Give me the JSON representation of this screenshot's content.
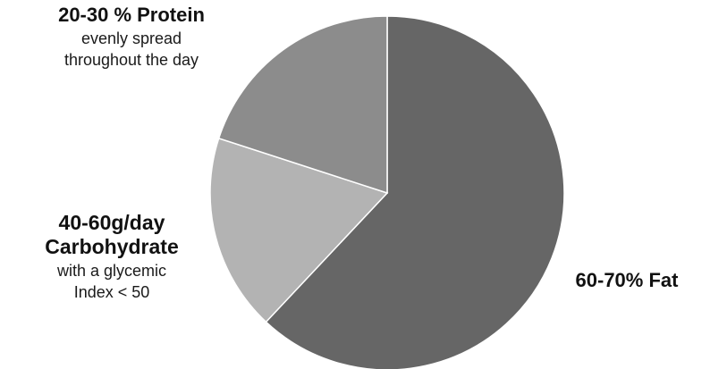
{
  "chart_data": {
    "type": "pie",
    "start_angle_deg": 0,
    "direction": "clockwise",
    "slices": [
      {
        "key": "fat",
        "value": 62,
        "color": "#666666",
        "label_main": [
          "60-70% Fat"
        ],
        "label_sub": []
      },
      {
        "key": "carbohydrate",
        "value": 18,
        "color": "#b3b3b3",
        "label_main": [
          "40-60g/day",
          "Carbohydrate"
        ],
        "label_sub": [
          "with a glycemic",
          "Index < 50"
        ]
      },
      {
        "key": "protein",
        "value": 20,
        "color": "#8c8c8c",
        "label_main": [
          "20-30 % Protein"
        ],
        "label_sub": [
          "evenly spread",
          "throughout the day"
        ]
      }
    ]
  }
}
